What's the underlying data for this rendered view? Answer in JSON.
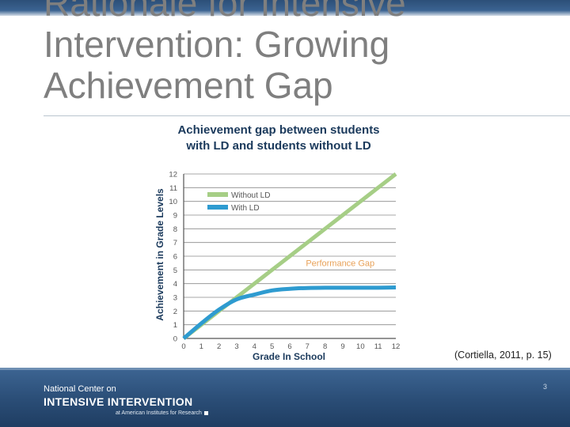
{
  "slide": {
    "title_lines": [
      "Rationale for Intensive",
      "Intervention: Growing",
      "Achievement Gap"
    ],
    "citation": "(Cortiella, 2011, p. 15)",
    "page_number": "3"
  },
  "footer": {
    "org_line1": "National Center on",
    "org_line2": "INTENSIVE INTERVENTION",
    "org_line3": "at American Institutes for Research"
  },
  "colors": {
    "title_text": "#7f7f7f",
    "chart_title": "#1b3a5c",
    "without_ld": "#a6ce86",
    "with_ld": "#2e9bd0",
    "annotation": "#e8a157",
    "footer_bg": "#2a4d76"
  },
  "chart_data": {
    "type": "line",
    "title_lines": [
      "Achievement gap between students",
      "with LD and students without LD"
    ],
    "xlabel": "Grade In School",
    "ylabel": "Achievement in Grade Levels",
    "xlim": [
      0,
      12
    ],
    "ylim": [
      0,
      12
    ],
    "x_ticks": [
      0,
      1,
      2,
      3,
      4,
      5,
      6,
      7,
      8,
      9,
      10,
      11,
      12
    ],
    "y_ticks": [
      0,
      1,
      2,
      3,
      4,
      5,
      6,
      7,
      8,
      9,
      10,
      11,
      12
    ],
    "grid": "horizontal",
    "legend_position": "top-left",
    "series": [
      {
        "name": "Without LD",
        "color": "#a6ce86",
        "x": [
          0,
          1,
          2,
          3,
          4,
          5,
          6,
          7,
          8,
          9,
          10,
          11,
          12
        ],
        "y": [
          0,
          1,
          2,
          3,
          4,
          5,
          6,
          7,
          8,
          9,
          10,
          11,
          12
        ]
      },
      {
        "name": "With LD",
        "color": "#2e9bd0",
        "x": [
          0,
          1,
          2,
          3,
          4,
          5,
          6,
          7,
          8,
          9,
          10,
          11,
          12
        ],
        "y": [
          0,
          1.1,
          2.1,
          2.85,
          3.2,
          3.5,
          3.62,
          3.68,
          3.7,
          3.7,
          3.7,
          3.7,
          3.72
        ]
      }
    ],
    "annotations": [
      {
        "text": "Performance Gap",
        "x": 7,
        "y": 5.5
      }
    ]
  }
}
